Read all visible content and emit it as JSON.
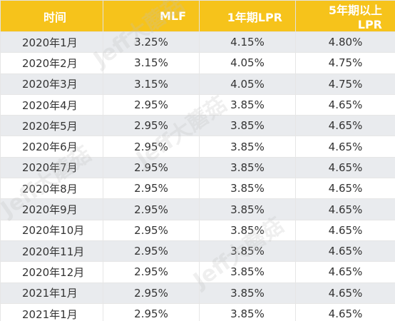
{
  "table": {
    "headers": [
      "时间",
      "MLF",
      "1年期LPR",
      "5年期以上LPR"
    ],
    "rows": [
      [
        "2020年1月",
        "3.25%",
        "4.15%",
        "4.80%"
      ],
      [
        "2020年2月",
        "3.15%",
        "4.05%",
        "4.75%"
      ],
      [
        "2020年3月",
        "3.15%",
        "4.05%",
        "4.75%"
      ],
      [
        "2020年4月",
        "2.95%",
        "3.85%",
        "4.65%"
      ],
      [
        "2020年5月",
        "2.95%",
        "3.85%",
        "4.65%"
      ],
      [
        "2020年6月",
        "2.95%",
        "3.85%",
        "4.65%"
      ],
      [
        "2020年7月",
        "2.95%",
        "3.85%",
        "4.65%"
      ],
      [
        "2020年8月",
        "2.95%",
        "3.85%",
        "4.65%"
      ],
      [
        "2020年9月",
        "2.95%",
        "3.85%",
        "4.65%"
      ],
      [
        "2020年10月",
        "2.95%",
        "3.85%",
        "4.65%"
      ],
      [
        "2020年11月",
        "2.95%",
        "3.85%",
        "4.65%"
      ],
      [
        "2020年12月",
        "2.95%",
        "3.85%",
        "4.65%"
      ],
      [
        "2021年1月",
        "2.95%",
        "3.85%",
        "4.65%"
      ],
      [
        "2021年1月",
        "2.95%",
        "3.85%",
        "4.65%"
      ]
    ]
  },
  "watermark": {
    "text": "Jeff大蘑菇"
  },
  "colors": {
    "header_bg": "#f6c31b",
    "stripe_bg": "#e9ebee"
  }
}
